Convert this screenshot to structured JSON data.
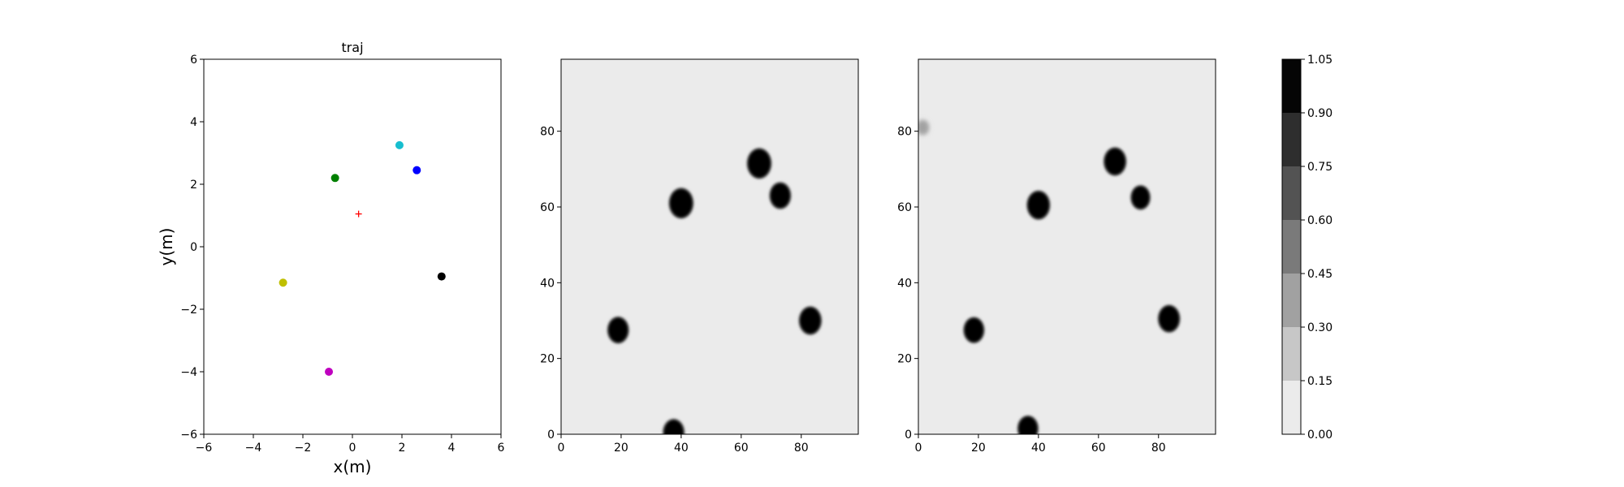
{
  "chart_data": [
    {
      "type": "scatter",
      "title": "traj",
      "xlabel": "x(m)",
      "ylabel": "y(m)",
      "xlim": [
        -6,
        6
      ],
      "ylim": [
        -6,
        6
      ],
      "xticks": [
        "−6",
        "−4",
        "−2",
        "0",
        "2",
        "4",
        "6"
      ],
      "yticks": [
        "−6",
        "−4",
        "−2",
        "0",
        "2",
        "4",
        "6"
      ],
      "grid": false,
      "points": [
        {
          "x": 1.9,
          "y": 3.25,
          "color": "#17becf",
          "marker": "circle"
        },
        {
          "x": 2.6,
          "y": 2.45,
          "color": "#0000ff",
          "marker": "circle"
        },
        {
          "x": -0.7,
          "y": 2.2,
          "color": "#008000",
          "marker": "circle"
        },
        {
          "x": 0.25,
          "y": 1.05,
          "color": "#ff0000",
          "marker": "plus"
        },
        {
          "x": 3.6,
          "y": -0.95,
          "color": "#000000",
          "marker": "circle"
        },
        {
          "x": -2.8,
          "y": -1.15,
          "color": "#bfbf00",
          "marker": "circle"
        },
        {
          "x": -0.95,
          "y": -4.0,
          "color": "#bf00bf",
          "marker": "circle"
        }
      ]
    },
    {
      "type": "heatmap",
      "title": "",
      "xlim": [
        0,
        99
      ],
      "ylim": [
        0,
        99
      ],
      "xticks": [
        "0",
        "20",
        "40",
        "60",
        "80"
      ],
      "yticks": [
        "0",
        "20",
        "40",
        "60",
        "80"
      ],
      "background_level": 0.08,
      "blobs": [
        {
          "x": 19,
          "y": 27.5,
          "r": 3.3,
          "level": 1.0
        },
        {
          "x": 40,
          "y": 61,
          "r": 3.8,
          "level": 1.0
        },
        {
          "x": 66,
          "y": 71.5,
          "r": 3.8,
          "level": 1.0
        },
        {
          "x": 73,
          "y": 63,
          "r": 3.3,
          "level": 1.0
        },
        {
          "x": 83,
          "y": 30,
          "r": 3.5,
          "level": 1.0
        },
        {
          "x": 37.5,
          "y": 0.5,
          "r": 3.3,
          "level": 1.0
        }
      ]
    },
    {
      "type": "heatmap",
      "title": "",
      "xlim": [
        0,
        99
      ],
      "ylim": [
        0,
        99
      ],
      "xticks": [
        "0",
        "20",
        "40",
        "60",
        "80"
      ],
      "yticks": [
        "0",
        "20",
        "40",
        "60",
        "80"
      ],
      "background_level": 0.08,
      "blobs": [
        {
          "x": 18.5,
          "y": 27.5,
          "r": 3.2,
          "level": 1.0
        },
        {
          "x": 40,
          "y": 60.5,
          "r": 3.6,
          "level": 1.0
        },
        {
          "x": 65.5,
          "y": 72,
          "r": 3.5,
          "level": 1.0
        },
        {
          "x": 74,
          "y": 62.5,
          "r": 3.0,
          "level": 1.0
        },
        {
          "x": 83.5,
          "y": 30.5,
          "r": 3.4,
          "level": 1.0
        },
        {
          "x": 36.5,
          "y": 1.5,
          "r": 3.2,
          "level": 1.0
        },
        {
          "x": 1.5,
          "y": 81,
          "r": 1.6,
          "level": 0.35
        }
      ]
    }
  ],
  "colorbar": {
    "ticks": [
      "0.00",
      "0.15",
      "0.30",
      "0.45",
      "0.60",
      "0.75",
      "0.90",
      "1.05"
    ],
    "levels": [
      0.0,
      0.15,
      0.3,
      0.45,
      0.6,
      0.75,
      0.9,
      1.05
    ],
    "colors": [
      "#ebebeb",
      "#c7c7c7",
      "#a1a1a1",
      "#7a7a7a",
      "#535353",
      "#2e2e2e",
      "#050505"
    ]
  }
}
